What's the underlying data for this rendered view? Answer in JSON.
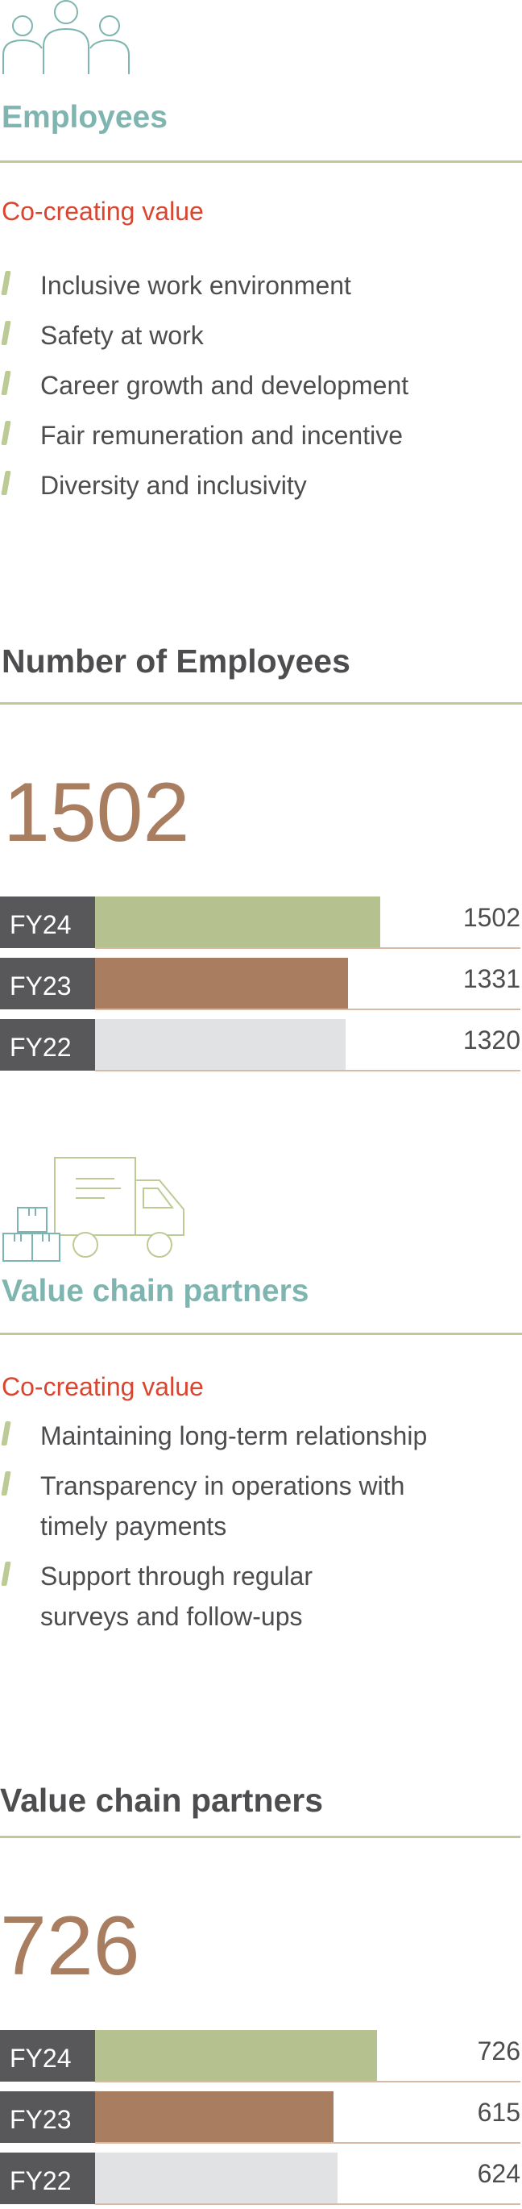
{
  "colors": {
    "teal": "#7fb5b0",
    "olive": "#bccb96",
    "red": "#d9452e",
    "brown": "#a97d60",
    "dark": "#58585a",
    "grey": "#e1e2e3"
  },
  "employees": {
    "icon": "people-icon",
    "title": "Employees",
    "subtitle": "Co-creating value",
    "bullets": [
      "Inclusive work environment",
      "Safety at work",
      "Career growth and development",
      "Fair remuneration and incentive",
      "Diversity and inclusivity"
    ]
  },
  "vcp": {
    "icon": "delivery-truck-icon",
    "title": "Value chain partners",
    "subtitle": "Co-creating value",
    "bullets": [
      "Maintaining long-term relationship",
      "Transparency in operations with timely payments",
      "Support through regular surveys and follow-ups"
    ],
    "bullet_lines": [
      [
        "Maintaining long-term relationship"
      ],
      [
        "Transparency in operations with",
        "timely payments"
      ],
      [
        "Support through regular",
        "surveys and follow-ups"
      ]
    ]
  },
  "chart_data": [
    {
      "type": "bar",
      "title": "Number of Employees",
      "headline": "1502",
      "categories": [
        "FY24",
        "FY23",
        "FY22"
      ],
      "values": [
        1502,
        1331,
        1320
      ],
      "value_labels": [
        "1502",
        "1331",
        "1320"
      ],
      "colors": [
        "#b5c28f",
        "#a97d60",
        "#e1e2e3"
      ]
    },
    {
      "type": "bar",
      "title": "Value chain partners",
      "headline": "726",
      "categories": [
        "FY24",
        "FY23",
        "FY22"
      ],
      "values": [
        726,
        615,
        624
      ],
      "value_labels": [
        "726",
        "615",
        "624"
      ],
      "colors": [
        "#b5c28f",
        "#a97d60",
        "#e1e2e3"
      ]
    }
  ]
}
